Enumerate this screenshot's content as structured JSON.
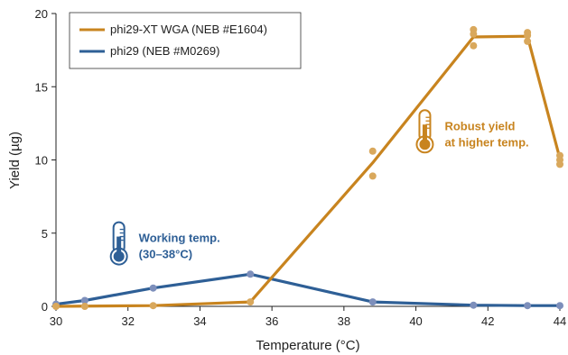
{
  "chart_data": {
    "type": "line",
    "xlabel": "Temperature (°C)",
    "ylabel": "Yield (µg)",
    "xlim": [
      30,
      44
    ],
    "ylim": [
      0,
      20
    ],
    "xticks": [
      30,
      32,
      34,
      36,
      38,
      40,
      42,
      44
    ],
    "yticks": [
      0,
      5,
      10,
      15,
      20
    ],
    "grid": false,
    "legend_position": "top-left",
    "series": [
      {
        "name": "phi29-XT WGA (NEB #E1604)",
        "color": "#c8841f",
        "point_color": "#d9a85c",
        "line": {
          "x": [
            30,
            32.7,
            35.4,
            38.8,
            41.6,
            43.1,
            44
          ],
          "y": [
            0,
            0.05,
            0.3,
            9.8,
            18.4,
            18.45,
            10.1
          ]
        },
        "points": [
          {
            "x": 30,
            "y": 0
          },
          {
            "x": 30.8,
            "y": 0
          },
          {
            "x": 32.7,
            "y": 0.05
          },
          {
            "x": 35.4,
            "y": 0.3
          },
          {
            "x": 38.8,
            "y": 10.6
          },
          {
            "x": 38.8,
            "y": 8.9
          },
          {
            "x": 41.6,
            "y": 18.9
          },
          {
            "x": 41.6,
            "y": 18.6
          },
          {
            "x": 41.6,
            "y": 17.8
          },
          {
            "x": 43.1,
            "y": 18.7
          },
          {
            "x": 43.1,
            "y": 18.5
          },
          {
            "x": 43.1,
            "y": 18.1
          },
          {
            "x": 44,
            "y": 10.3
          },
          {
            "x": 44,
            "y": 10.0
          },
          {
            "x": 44,
            "y": 9.7
          }
        ]
      },
      {
        "name": "phi29 (NEB #M0269)",
        "color": "#2e5f96",
        "point_color": "#7d8fbb",
        "line": {
          "x": [
            30,
            30.8,
            32.7,
            35.4,
            38.8,
            41.6,
            43.1,
            44
          ],
          "y": [
            0.15,
            0.4,
            1.25,
            2.2,
            0.3,
            0.08,
            0.05,
            0.05
          ]
        },
        "points": [
          {
            "x": 30,
            "y": 0.15
          },
          {
            "x": 30.8,
            "y": 0.4
          },
          {
            "x": 32.7,
            "y": 1.25
          },
          {
            "x": 35.4,
            "y": 2.2
          },
          {
            "x": 38.8,
            "y": 0.3
          },
          {
            "x": 41.6,
            "y": 0.08
          },
          {
            "x": 43.1,
            "y": 0.05
          },
          {
            "x": 44,
            "y": 0.05
          }
        ]
      }
    ],
    "annotations": [
      {
        "id": "working",
        "lines": [
          "Working temp.",
          "(30–38°C)"
        ],
        "color": "#2e5f96",
        "x": 32.3,
        "y": 4.15
      },
      {
        "id": "robust",
        "lines": [
          "Robust yield",
          "at higher temp."
        ],
        "color": "#c8841f",
        "x": 40.8,
        "y": 11.8
      }
    ]
  }
}
